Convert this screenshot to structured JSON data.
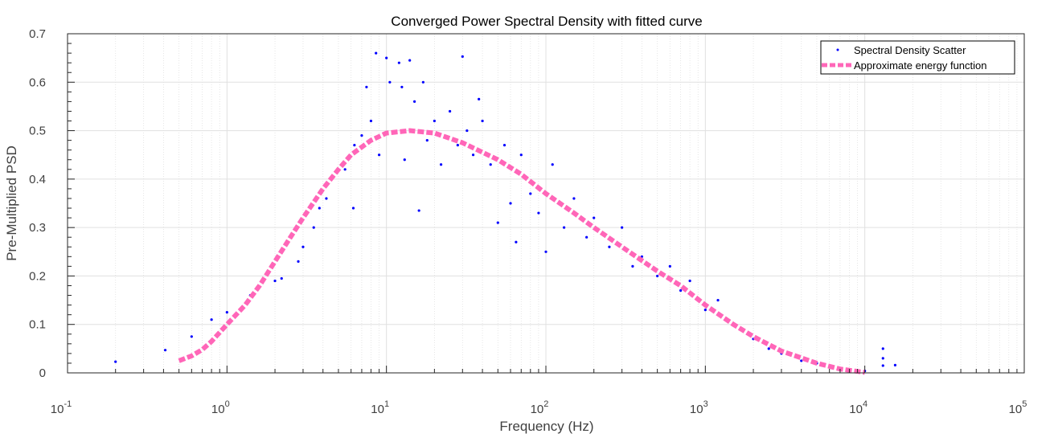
{
  "chart_data": {
    "type": "scatter",
    "title": "Converged Power Spectral Density with fitted curve",
    "xlabel": "Frequency (Hz)",
    "ylabel": "Pre-Multiplied PSD",
    "xscale": "log",
    "xlim": [
      0.1,
      100000
    ],
    "ylim": [
      0,
      0.7
    ],
    "x_ticks": [
      {
        "base": "10",
        "exp": "-1",
        "value": 0.1
      },
      {
        "base": "10",
        "exp": "0",
        "value": 1
      },
      {
        "base": "10",
        "exp": "1",
        "value": 10
      },
      {
        "base": "10",
        "exp": "2",
        "value": 100
      },
      {
        "base": "10",
        "exp": "3",
        "value": 1000
      },
      {
        "base": "10",
        "exp": "4",
        "value": 10000
      },
      {
        "base": "10",
        "exp": "5",
        "value": 100000
      }
    ],
    "y_ticks": [
      "0",
      "0.1",
      "0.2",
      "0.3",
      "0.4",
      "0.5",
      "0.6",
      "0.7"
    ],
    "grid": true,
    "legend_position": "top-right",
    "series": [
      {
        "name": "Spectral Density Scatter",
        "kind": "scatter",
        "color": "#0000ff",
        "points": [
          [
            0.2,
            0.023
          ],
          [
            0.41,
            0.047
          ],
          [
            0.6,
            0.075
          ],
          [
            0.8,
            0.11
          ],
          [
            1.0,
            0.125
          ],
          [
            1.4,
            0.16
          ],
          [
            2.0,
            0.19
          ],
          [
            2.2,
            0.195
          ],
          [
            2.8,
            0.23
          ],
          [
            3.0,
            0.26
          ],
          [
            3.5,
            0.3
          ],
          [
            3.8,
            0.34
          ],
          [
            4.2,
            0.36
          ],
          [
            5.5,
            0.42
          ],
          [
            6.2,
            0.34
          ],
          [
            6.3,
            0.47
          ],
          [
            7.0,
            0.49
          ],
          [
            7.5,
            0.59
          ],
          [
            8.0,
            0.52
          ],
          [
            8.6,
            0.66
          ],
          [
            9.0,
            0.45
          ],
          [
            10.0,
            0.65
          ],
          [
            10.5,
            0.6
          ],
          [
            12.0,
            0.64
          ],
          [
            12.5,
            0.59
          ],
          [
            13.0,
            0.44
          ],
          [
            14.0,
            0.645
          ],
          [
            15.0,
            0.56
          ],
          [
            16.0,
            0.335
          ],
          [
            17.0,
            0.6
          ],
          [
            18.0,
            0.48
          ],
          [
            20.0,
            0.52
          ],
          [
            22.0,
            0.43
          ],
          [
            25.0,
            0.54
          ],
          [
            28.0,
            0.47
          ],
          [
            30.0,
            0.653
          ],
          [
            32.0,
            0.5
          ],
          [
            35.0,
            0.45
          ],
          [
            38.0,
            0.565
          ],
          [
            40.0,
            0.52
          ],
          [
            45.0,
            0.43
          ],
          [
            50.0,
            0.31
          ],
          [
            55.0,
            0.47
          ],
          [
            60.0,
            0.35
          ],
          [
            65.0,
            0.27
          ],
          [
            70.0,
            0.45
          ],
          [
            80.0,
            0.37
          ],
          [
            90.0,
            0.33
          ],
          [
            100.0,
            0.25
          ],
          [
            110.0,
            0.43
          ],
          [
            130.0,
            0.3
          ],
          [
            150.0,
            0.36
          ],
          [
            180.0,
            0.28
          ],
          [
            200.0,
            0.32
          ],
          [
            250.0,
            0.26
          ],
          [
            300.0,
            0.3
          ],
          [
            350.0,
            0.22
          ],
          [
            400.0,
            0.24
          ],
          [
            500.0,
            0.2
          ],
          [
            600.0,
            0.22
          ],
          [
            700.0,
            0.17
          ],
          [
            800.0,
            0.19
          ],
          [
            1000.0,
            0.13
          ],
          [
            1200.0,
            0.15
          ],
          [
            1500.0,
            0.1
          ],
          [
            2000.0,
            0.07
          ],
          [
            2500.0,
            0.05
          ],
          [
            3000.0,
            0.04
          ],
          [
            4000.0,
            0.025
          ],
          [
            5000.0,
            0.02
          ],
          [
            7000.0,
            0.01
          ],
          [
            10000.0,
            0.004
          ],
          [
            13000.0,
            0.05
          ],
          [
            13000.0,
            0.03
          ],
          [
            13000.0,
            0.015
          ],
          [
            15500.0,
            0.016
          ]
        ]
      },
      {
        "name": "Approximate energy function",
        "kind": "line",
        "color": "#ff66b8",
        "line_style": "dashed",
        "points": [
          [
            0.5,
            0.025
          ],
          [
            0.6,
            0.035
          ],
          [
            0.7,
            0.048
          ],
          [
            0.8,
            0.065
          ],
          [
            1.0,
            0.1
          ],
          [
            1.3,
            0.14
          ],
          [
            1.6,
            0.18
          ],
          [
            2.0,
            0.23
          ],
          [
            2.5,
            0.28
          ],
          [
            3.0,
            0.32
          ],
          [
            4.0,
            0.38
          ],
          [
            5.0,
            0.42
          ],
          [
            6.0,
            0.45
          ],
          [
            8.0,
            0.48
          ],
          [
            10.0,
            0.495
          ],
          [
            14.0,
            0.5
          ],
          [
            20.0,
            0.495
          ],
          [
            30.0,
            0.475
          ],
          [
            50.0,
            0.44
          ],
          [
            70.0,
            0.41
          ],
          [
            100.0,
            0.37
          ],
          [
            150.0,
            0.33
          ],
          [
            200.0,
            0.3
          ],
          [
            300.0,
            0.26
          ],
          [
            500.0,
            0.21
          ],
          [
            700.0,
            0.18
          ],
          [
            1000.0,
            0.14
          ],
          [
            1500.0,
            0.1
          ],
          [
            2000.0,
            0.075
          ],
          [
            3000.0,
            0.045
          ],
          [
            5000.0,
            0.02
          ],
          [
            7000.0,
            0.008
          ],
          [
            10000.0,
            0.001
          ]
        ]
      }
    ]
  },
  "colors": {
    "scatter": "#0000ff",
    "fit_line": "#ff66b8",
    "grid": "#e0e0e0",
    "axis": "#262626"
  }
}
